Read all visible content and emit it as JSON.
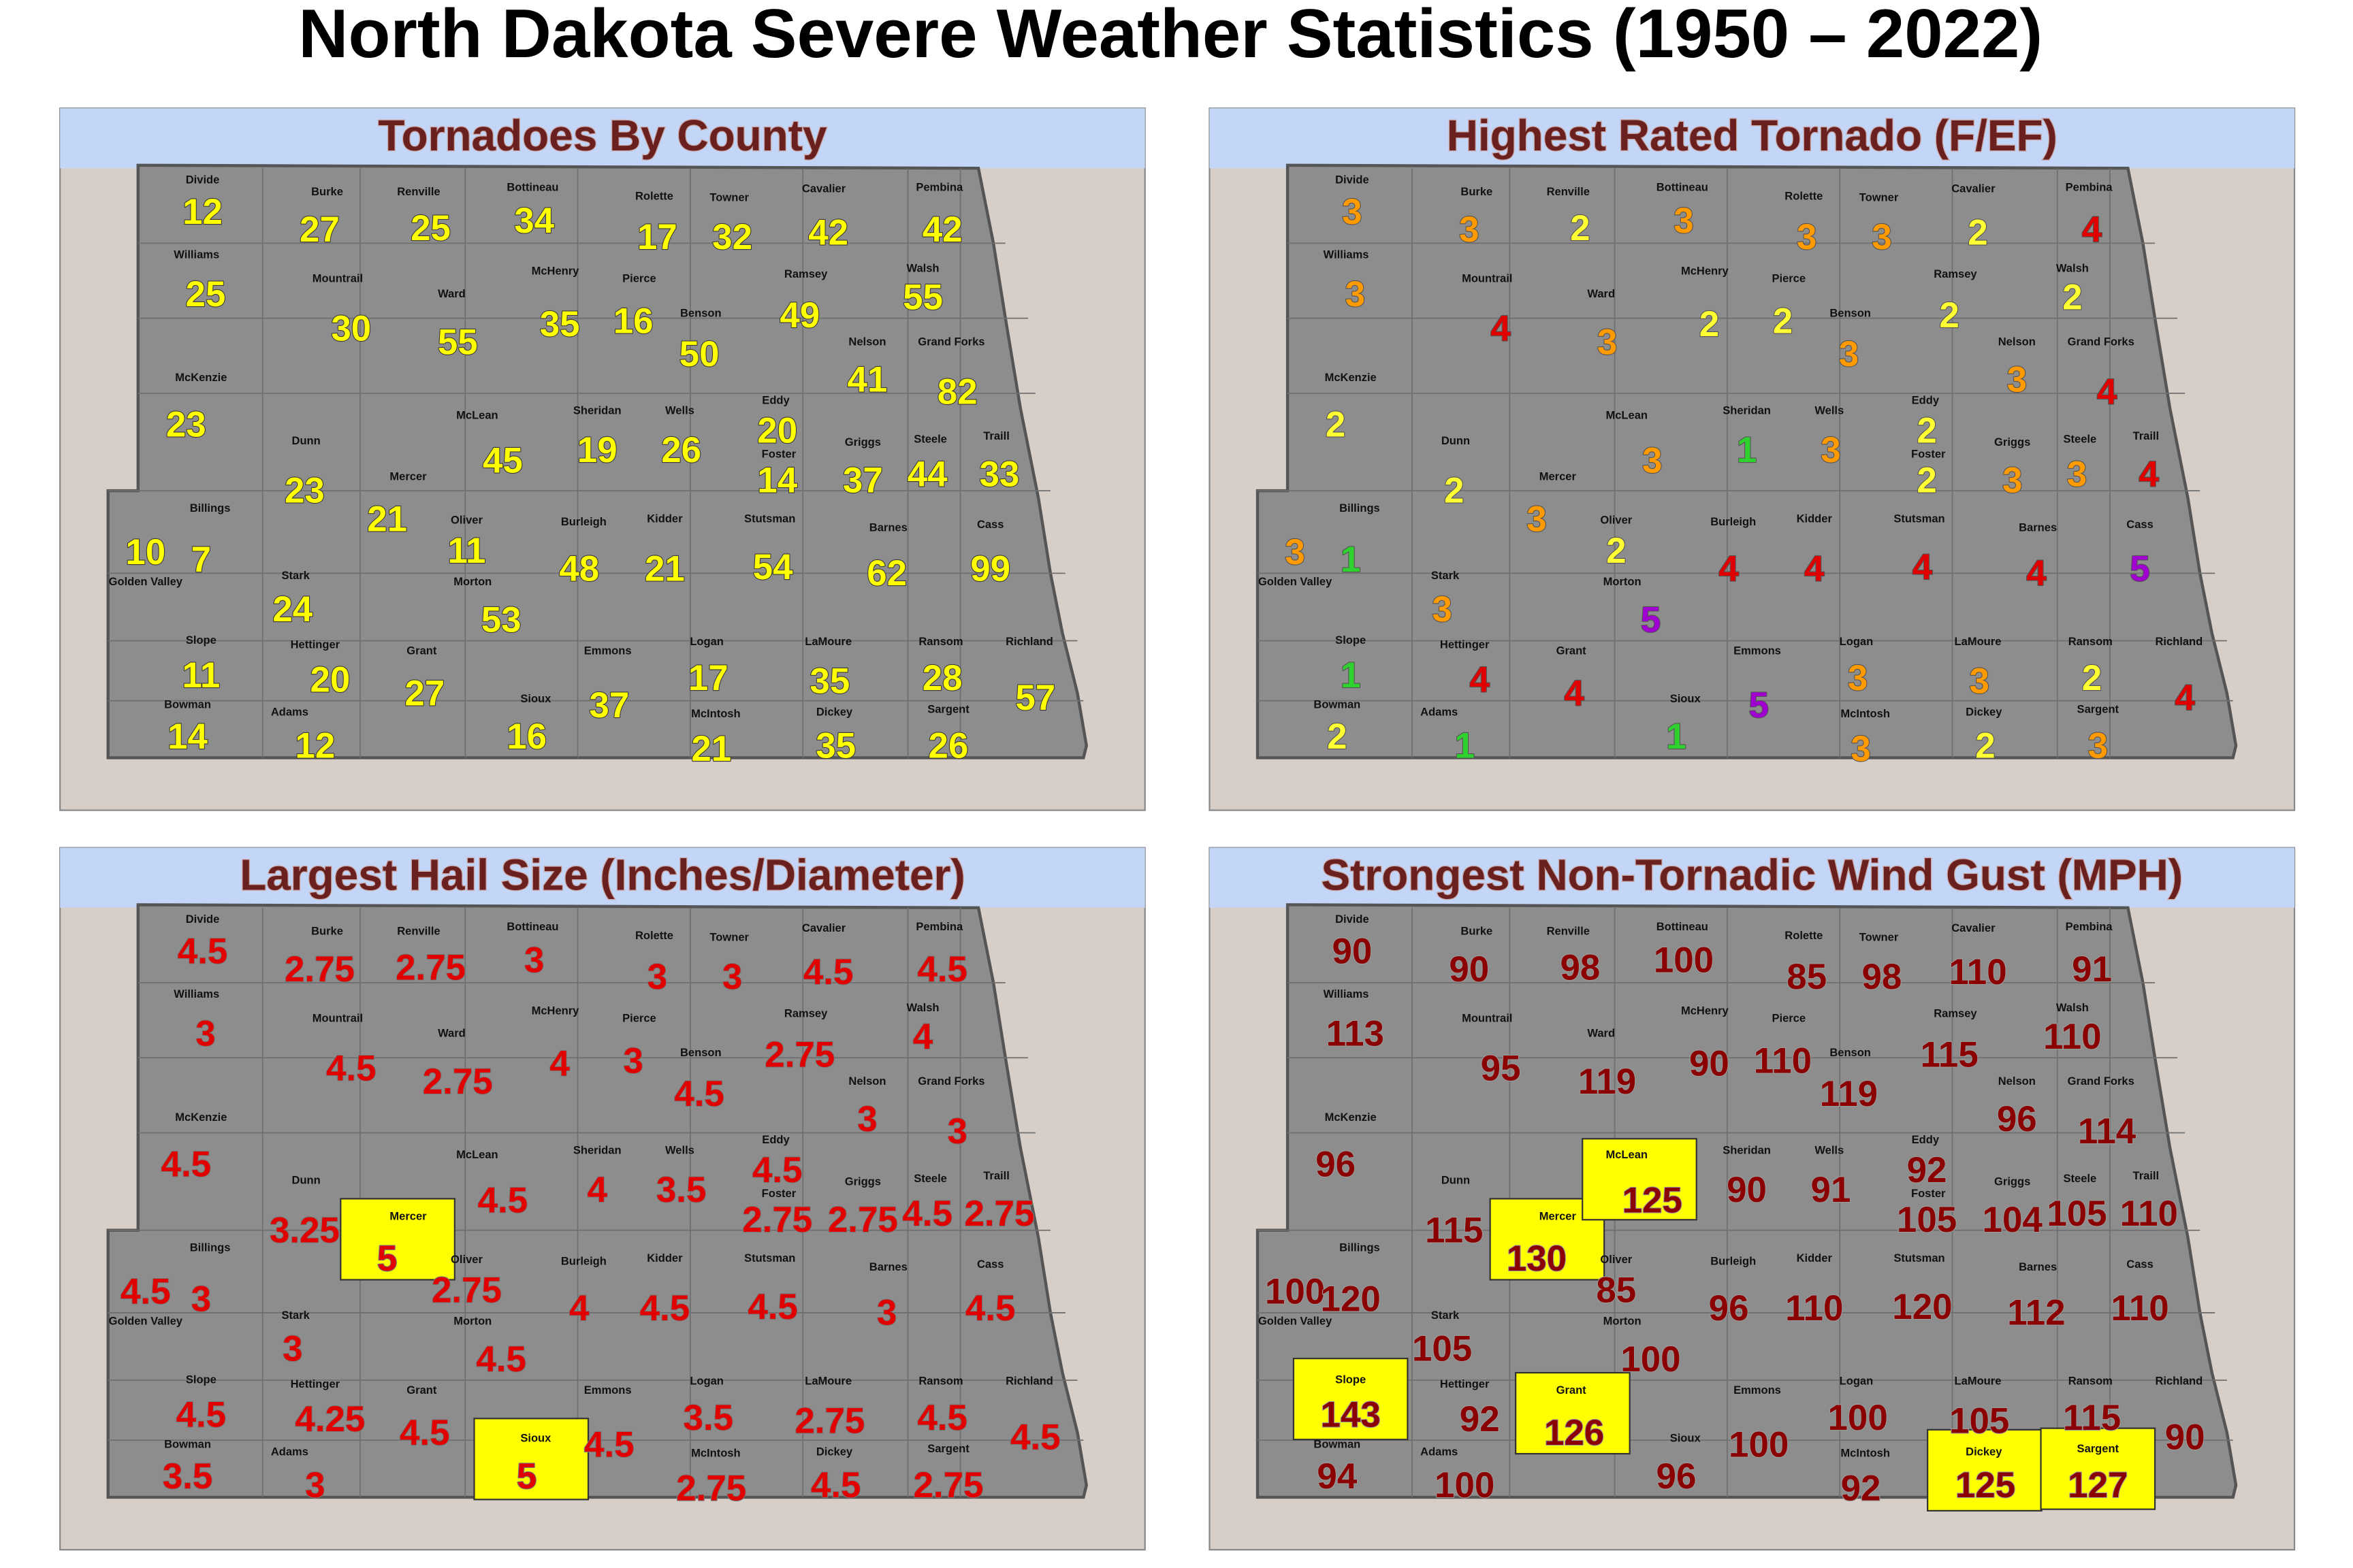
{
  "title": "North Dakota Severe Weather Statistics (1950 – 2022)",
  "counties": [
    "Divide",
    "Burke",
    "Renville",
    "Bottineau",
    "Rolette",
    "Towner",
    "Cavalier",
    "Pembina",
    "Williams",
    "Mountrail",
    "Ward",
    "McHenry",
    "Pierce",
    "Benson",
    "Ramsey",
    "Walsh",
    "Nelson",
    "Grand Forks",
    "McKenzie",
    "Dunn",
    "Mercer",
    "McLean",
    "Sheridan",
    "Wells",
    "Eddy",
    "Foster",
    "Griggs",
    "Steele",
    "Traill",
    "Golden Valley",
    "Billings",
    "Oliver",
    "Burleigh",
    "Kidder",
    "Stutsman",
    "Barnes",
    "Cass",
    "Stark",
    "Morton",
    "Slope",
    "Hettinger",
    "Grant",
    "Emmons",
    "Logan",
    "LaMoure",
    "Ransom",
    "Richland",
    "Bowman",
    "Adams",
    "Sioux",
    "McIntosh",
    "Dickey",
    "Sargent"
  ],
  "panels": [
    {
      "title": "Tornadoes By County",
      "color": "#ffff00",
      "outline": "#3a3a3a",
      "values": [
        12,
        27,
        25,
        34,
        17,
        32,
        42,
        42,
        25,
        30,
        55,
        35,
        16,
        50,
        49,
        55,
        41,
        82,
        23,
        23,
        21,
        45,
        19,
        26,
        20,
        14,
        37,
        44,
        33,
        10,
        7,
        11,
        48,
        21,
        54,
        62,
        99,
        24,
        53,
        11,
        20,
        27,
        37,
        17,
        35,
        28,
        57,
        14,
        12,
        16,
        21,
        35,
        26
      ],
      "highlighted": []
    },
    {
      "title": "Highest Rated Tornado (F/EF)",
      "outline": "#555555",
      "value_colors": {
        "1": "#2fd12f",
        "2": "#ffff33",
        "3": "#ff9a00",
        "4": "#e00000",
        "5": "#a000d0"
      },
      "values": [
        3,
        3,
        2,
        3,
        3,
        3,
        2,
        4,
        3,
        4,
        3,
        2,
        2,
        3,
        2,
        2,
        3,
        4,
        2,
        2,
        3,
        3,
        1,
        3,
        2,
        2,
        3,
        3,
        4,
        3,
        1,
        2,
        4,
        4,
        4,
        4,
        5,
        3,
        5,
        1,
        4,
        4,
        5,
        3,
        3,
        2,
        4,
        2,
        1,
        1,
        3,
        2,
        3
      ],
      "highlighted": []
    },
    {
      "title": "Largest Hail Size (Inches/Diameter)",
      "color": "#e00000",
      "outline": "#7a7a7a",
      "values": [
        4.5,
        2.75,
        2.75,
        3,
        3,
        3,
        4.5,
        4.5,
        3,
        4.5,
        2.75,
        4,
        3,
        4.5,
        2.75,
        4,
        3,
        3,
        4.5,
        3.25,
        5,
        4.5,
        4,
        3.5,
        4.5,
        2.75,
        2.75,
        4.5,
        2.75,
        4.5,
        3,
        2.75,
        4,
        4.5,
        4.5,
        3,
        4.5,
        3,
        4.5,
        4.5,
        4.25,
        4.5,
        4.5,
        3.5,
        2.75,
        4.5,
        4.5,
        3.5,
        3,
        5,
        2.75,
        4.5,
        2.75
      ],
      "highlighted": [
        "Mercer",
        "Sioux"
      ],
      "highlight_color": "#ffff00"
    },
    {
      "title": "Strongest Non-Tornadic Wind Gust (MPH)",
      "color": "#8b0000",
      "outline": "#9a9a9a",
      "values": [
        90,
        90,
        98,
        100,
        85,
        98,
        110,
        91,
        113,
        95,
        119,
        90,
        110,
        119,
        115,
        110,
        96,
        114,
        96,
        115,
        130,
        125,
        90,
        91,
        92,
        105,
        104,
        105,
        110,
        100,
        120,
        85,
        96,
        110,
        120,
        112,
        110,
        105,
        100,
        143,
        92,
        126,
        100,
        100,
        105,
        115,
        90,
        94,
        100,
        96,
        92,
        125,
        127
      ],
      "highlighted": [
        "Mercer",
        "McLean",
        "Slope",
        "Grant",
        "Dickey",
        "Sargent"
      ],
      "highlight_color": "#ffff00"
    }
  ]
}
